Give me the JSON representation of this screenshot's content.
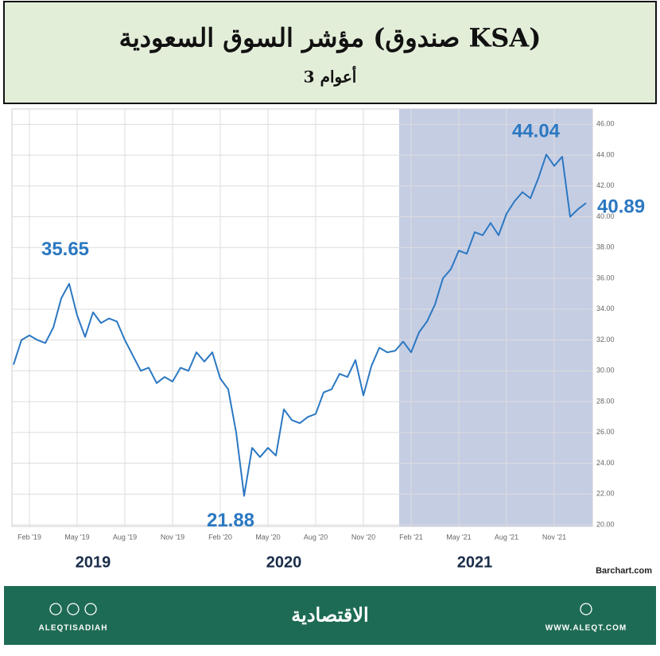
{
  "chart_data": {
    "type": "line",
    "title": "مؤشر السوق السعودية (صندوق KSA)",
    "subtitle": "3 أعوام",
    "categories": [
      null,
      null,
      "Feb '19",
      null,
      null,
      null,
      null,
      null,
      "May '19",
      null,
      null,
      null,
      null,
      null,
      "Aug '19",
      null,
      null,
      null,
      null,
      null,
      "Nov '19",
      null,
      null,
      null,
      null,
      null,
      "Feb '20",
      null,
      null,
      null,
      null,
      null,
      "May '20",
      null,
      null,
      null,
      null,
      null,
      "Aug '20",
      null,
      null,
      null,
      null,
      null,
      "Nov '20",
      null,
      null,
      null,
      null,
      null,
      "Feb '21",
      null,
      null,
      null,
      null,
      null,
      "May '21",
      null,
      null,
      null,
      null,
      null,
      "Aug '21",
      null,
      null,
      null,
      null,
      null,
      "Nov '21",
      null,
      null,
      null,
      null
    ],
    "values": [
      30.4,
      32.0,
      32.3,
      32.0,
      31.8,
      32.8,
      34.7,
      35.65,
      33.6,
      32.2,
      33.8,
      33.1,
      33.4,
      33.2,
      32.0,
      31.0,
      30.0,
      30.2,
      29.2,
      29.6,
      29.3,
      30.2,
      30.0,
      31.2,
      30.6,
      31.2,
      29.5,
      28.8,
      26.0,
      21.88,
      25.0,
      24.4,
      25.0,
      24.5,
      27.5,
      26.8,
      26.6,
      27.0,
      27.2,
      28.6,
      28.8,
      29.8,
      29.6,
      30.7,
      28.4,
      30.3,
      31.5,
      31.2,
      31.3,
      31.9,
      31.2,
      32.5,
      33.2,
      34.3,
      36.0,
      36.6,
      37.8,
      37.6,
      39.0,
      38.8,
      39.6,
      38.8,
      40.2,
      41.0,
      41.6,
      41.2,
      42.5,
      44.04,
      43.3,
      43.9,
      40.0,
      40.5,
      40.89
    ],
    "color": "#2b78c2",
    "ylim": [
      19.9,
      47
    ],
    "yticks": [
      {
        "value": 20,
        "label": "20.00"
      },
      {
        "value": 22,
        "label": "22.00"
      },
      {
        "value": 24,
        "label": "24.00"
      },
      {
        "value": 26,
        "label": "26.00"
      },
      {
        "value": 28,
        "label": "28.00"
      },
      {
        "value": 30,
        "label": "30.00"
      },
      {
        "value": 32,
        "label": "32.00"
      },
      {
        "value": 34,
        "label": "34.00"
      },
      {
        "value": 36,
        "label": "36.00"
      },
      {
        "value": 38,
        "label": "38.00"
      },
      {
        "value": 40,
        "label": "40.00"
      },
      {
        "value": 42,
        "label": "42.00"
      },
      {
        "value": 44,
        "label": "44.00"
      },
      {
        "value": 46,
        "label": "46.00"
      }
    ],
    "grid": true,
    "year_labels": [
      "2019",
      "2020",
      "2021"
    ],
    "source": "Barchart.com"
  },
  "footer": {
    "logo": "الاقتصادية",
    "handle": "ALEQTISADIAH",
    "website": "WWW.ALEQT.COM"
  }
}
